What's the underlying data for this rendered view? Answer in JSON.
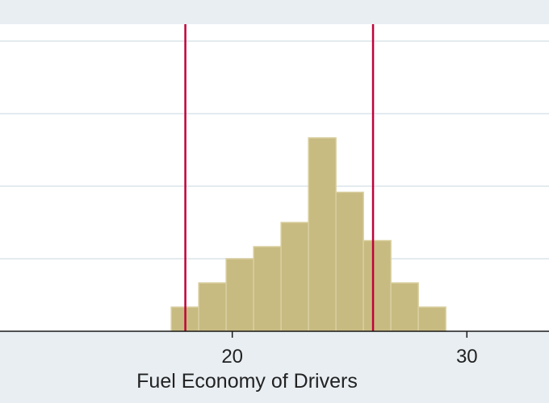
{
  "chart_data": {
    "type": "histogram",
    "title": "",
    "xlabel": "Fuel Economy of Drivers",
    "ylabel": "",
    "xlim": [
      10.1,
      33.5
    ],
    "ylim": [
      0,
      12.7
    ],
    "x_ticks": [
      20,
      30
    ],
    "x_tick_labels": [
      "20",
      "30"
    ],
    "grid": true,
    "bin_width": 1.17,
    "bins": [
      {
        "start": 17.4,
        "count": 1
      },
      {
        "start": 18.57,
        "count": 2
      },
      {
        "start": 19.74,
        "count": 3
      },
      {
        "start": 20.91,
        "count": 3.5
      },
      {
        "start": 22.08,
        "count": 4.5
      },
      {
        "start": 23.25,
        "count": 8
      },
      {
        "start": 24.42,
        "count": 5.75
      },
      {
        "start": 25.59,
        "count": 3.75
      },
      {
        "start": 26.76,
        "count": 2
      },
      {
        "start": 27.93,
        "count": 1
      }
    ],
    "vertical_lines": [
      18.0,
      26.0
    ],
    "colors": {
      "bar_fill": "#c8bb81",
      "bar_stroke": "#d9cf9f",
      "vline": "#c2003a",
      "plot_bg": "#ffffff",
      "outer_bg": "#e8eef2",
      "grid": "#e4ebef",
      "axis": "#1a1a1a"
    }
  }
}
